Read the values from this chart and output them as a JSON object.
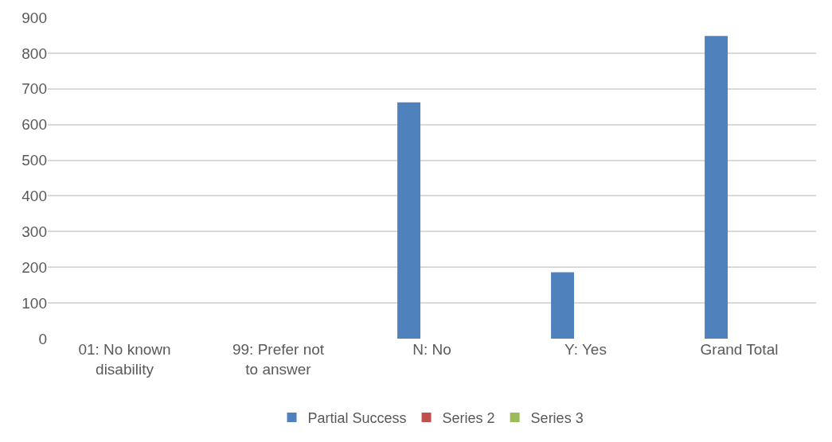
{
  "chart_data": {
    "type": "bar",
    "categories": [
      "01: No known disability",
      "99: Prefer not to answer",
      "N: No",
      "Y: Yes",
      "Grand Total"
    ],
    "series": [
      {
        "name": "Partial Success",
        "color": "#4f81bd",
        "values": [
          0,
          0,
          662,
          186,
          848
        ]
      },
      {
        "name": "Series 2",
        "color": "#c0504d",
        "values": [
          0,
          0,
          0,
          0,
          null
        ]
      },
      {
        "name": "Series 3",
        "color": "#9bbb59",
        "values": [
          0,
          0,
          0,
          0,
          null
        ]
      }
    ],
    "ylim": [
      0,
      900
    ],
    "yticks": [
      0,
      100,
      200,
      300,
      400,
      500,
      600,
      700,
      800,
      900
    ],
    "grid": "y",
    "legend": "bottom"
  }
}
